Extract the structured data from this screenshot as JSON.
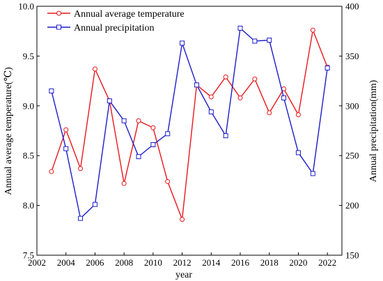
{
  "colors": {
    "temperature": "#e8171c",
    "precipitation": "#1c1cc8",
    "axis": "#000000"
  },
  "legend": {
    "placement": "top-left",
    "temperature_label": "Annual average temperature",
    "precipitation_label": "Annual precipitation"
  },
  "axes": {
    "xlabel": "year",
    "ylabel_left": "Annual average temperature(℃)",
    "ylabel_right": "Annual precipitation(mm)"
  },
  "chart_data": {
    "type": "line",
    "title": "",
    "x": [
      2003,
      2004,
      2005,
      2006,
      2007,
      2008,
      2009,
      2010,
      2011,
      2012,
      2013,
      2014,
      2015,
      2016,
      2017,
      2018,
      2019,
      2020,
      2021,
      2022
    ],
    "xlim": [
      2002,
      2023
    ],
    "xticks": [
      "2002",
      "2004",
      "2006",
      "2008",
      "2010",
      "2012",
      "2014",
      "2016",
      "2018",
      "2020",
      "2022"
    ],
    "ylim_left": [
      7.5,
      10.0
    ],
    "yticks_left": [
      "7.5",
      "8.0",
      "8.5",
      "9.0",
      "9.5",
      "10.0"
    ],
    "ylim_right": [
      150,
      400
    ],
    "yticks_right": [
      "150",
      "200",
      "250",
      "300",
      "350",
      "400"
    ],
    "grid": false,
    "series": [
      {
        "name": "Annual average temperature",
        "axis": "left",
        "marker": "circle",
        "values": [
          8.34,
          8.76,
          8.37,
          9.37,
          9.05,
          8.22,
          8.85,
          8.78,
          8.24,
          7.86,
          9.21,
          9.09,
          9.29,
          9.08,
          9.27,
          8.93,
          9.17,
          8.91,
          9.76,
          9.39
        ]
      },
      {
        "name": "Annual precipitation",
        "axis": "right",
        "marker": "square",
        "values": [
          315,
          257,
          187,
          201,
          305,
          285,
          249,
          261,
          272,
          363,
          321,
          294,
          270,
          378,
          365,
          366,
          308,
          253,
          232,
          338
        ]
      }
    ]
  }
}
